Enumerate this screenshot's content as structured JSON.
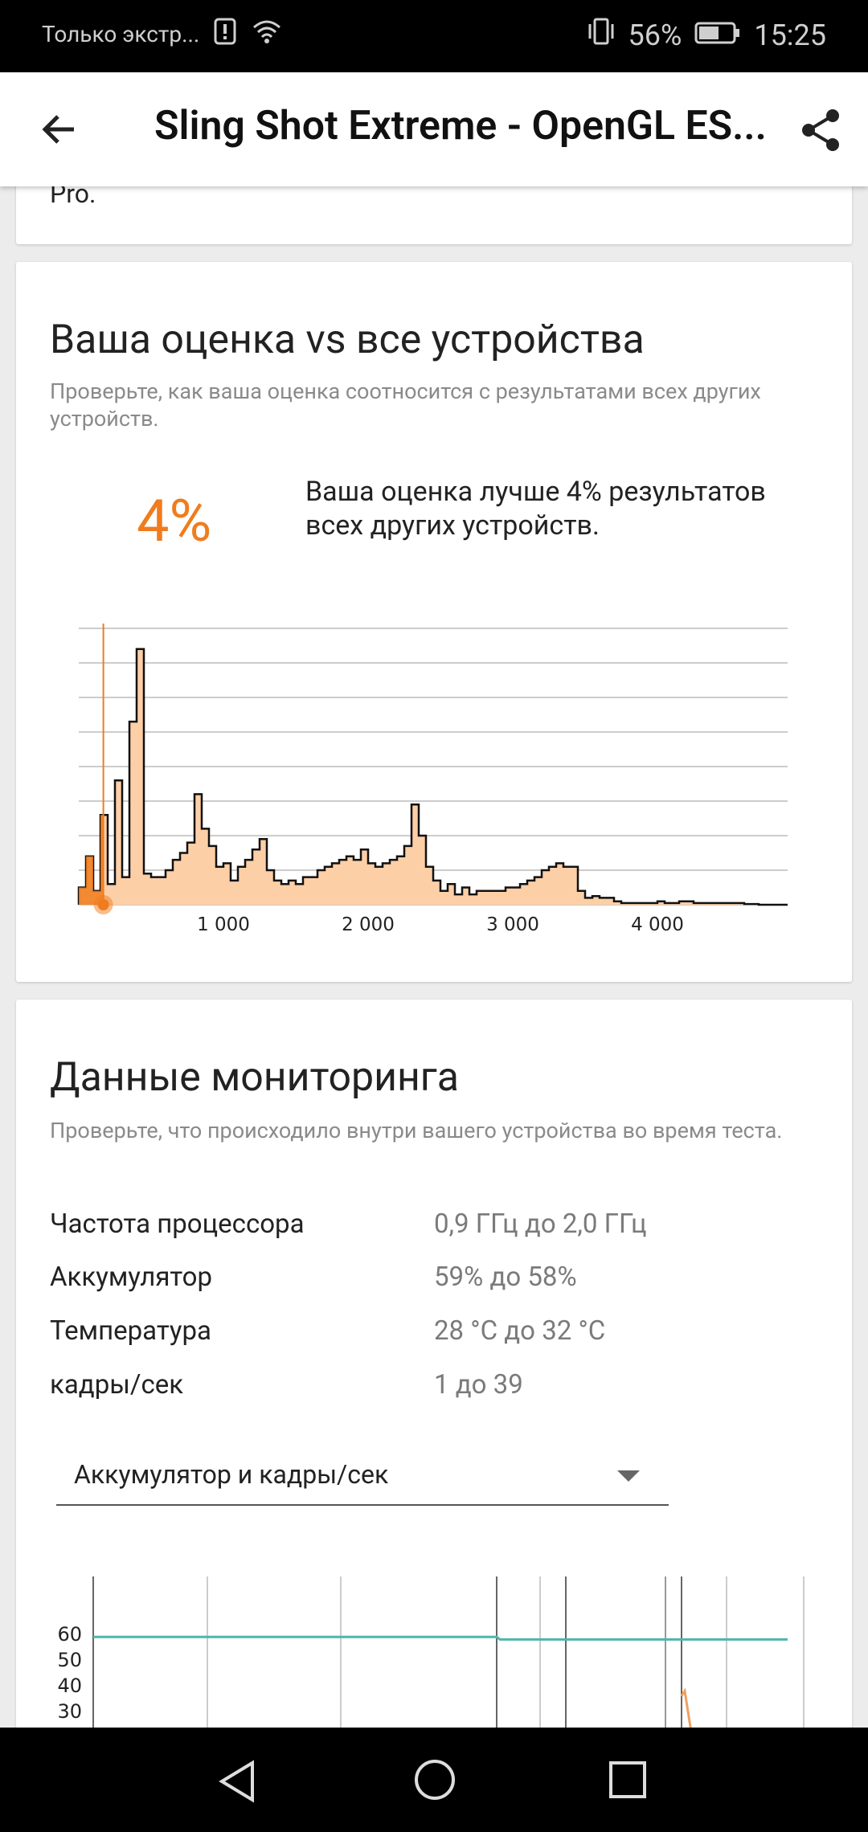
{
  "status_bar": {
    "carrier": "Только экстр...",
    "battery": "56%",
    "time": "15:25"
  },
  "app_bar": {
    "title": "Sling Shot Extreme - OpenGL ES..."
  },
  "previous_card": {
    "text_tail": "Pro."
  },
  "score_card": {
    "title": "Ваша оценка vs все устройства",
    "subtitle": "Проверьте, как ваша оценка соотносится с результатами всех других устройств.",
    "percent": "4%",
    "percent_desc": "Ваша оценка лучше 4% результатов всех других устройств."
  },
  "chart_data": {
    "type": "area",
    "x_ticks": [
      "1 000",
      "2 000",
      "3 000",
      "4 000"
    ],
    "xlim": [
      0,
      4900
    ],
    "ylim": [
      0,
      8
    ],
    "grid": true,
    "user_score": 170,
    "accent_color": "#f07c1e",
    "fill_color": "#fdcfa6",
    "x": [
      0,
      50,
      100,
      150,
      200,
      250,
      300,
      350,
      400,
      450,
      500,
      550,
      600,
      650,
      700,
      750,
      800,
      850,
      900,
      950,
      1000,
      1050,
      1100,
      1150,
      1200,
      1250,
      1300,
      1350,
      1400,
      1450,
      1500,
      1550,
      1600,
      1650,
      1700,
      1750,
      1800,
      1850,
      1900,
      1950,
      2000,
      2050,
      2100,
      2150,
      2200,
      2250,
      2300,
      2350,
      2400,
      2450,
      2500,
      2550,
      2600,
      2650,
      2700,
      2750,
      2800,
      2850,
      2900,
      2950,
      3000,
      3050,
      3100,
      3150,
      3200,
      3250,
      3300,
      3350,
      3400,
      3450,
      3500,
      3550,
      3600,
      3650,
      3700,
      3750,
      3800,
      3850,
      3900,
      3950,
      4000,
      4050,
      4100,
      4150,
      4200,
      4250,
      4300,
      4350,
      4400,
      4450,
      4500,
      4550,
      4600,
      4650,
      4700,
      4750,
      4800,
      4850
    ],
    "values": [
      0.5,
      1.4,
      0.4,
      2.6,
      0.6,
      3.6,
      0.8,
      5.3,
      7.4,
      0.9,
      0.8,
      0.8,
      1.0,
      1.3,
      1.5,
      1.8,
      3.2,
      2.2,
      1.7,
      1.1,
      1.2,
      0.7,
      1.1,
      1.3,
      1.6,
      1.9,
      1.0,
      0.7,
      0.6,
      0.7,
      0.6,
      0.8,
      0.8,
      1.0,
      1.1,
      1.2,
      1.3,
      1.4,
      1.3,
      1.6,
      1.2,
      1.1,
      1.2,
      1.3,
      1.4,
      1.7,
      2.9,
      2.0,
      1.1,
      0.7,
      0.4,
      0.6,
      0.3,
      0.5,
      0.3,
      0.4,
      0.4,
      0.4,
      0.4,
      0.5,
      0.5,
      0.6,
      0.7,
      0.8,
      1.0,
      1.1,
      1.2,
      1.1,
      1.1,
      0.4,
      0.2,
      0.25,
      0.2,
      0.2,
      0.1,
      0.05,
      0.05,
      0.05,
      0.05,
      0.05,
      0.1,
      0.05,
      0.05,
      0.1,
      0.1,
      0.05,
      0.05,
      0.05,
      0.05,
      0.05,
      0.05,
      0.05,
      0.02,
      0.02,
      0.0,
      0.0,
      0.0,
      0.0
    ]
  },
  "monitoring_card": {
    "title": "Данные мониторинга",
    "subtitle": "Проверьте, что происходило внутри вашего устройства во время теста.",
    "rows": [
      {
        "label": "Частота процессора",
        "value": "0,9 ГГц до 2,0 ГГц"
      },
      {
        "label": "Аккумулятор",
        "value": "59% до 58%"
      },
      {
        "label": "Температура",
        "value": "28 °C до 32 °C"
      },
      {
        "label": "кадры/сек",
        "value": "1 до 39"
      }
    ],
    "dropdown_selected": "Аккумулятор и кадры/сек",
    "y_ticks": [
      "60",
      "50",
      "40",
      "30"
    ],
    "line_color": "#4db6ac",
    "fps_color": "#f0a060"
  }
}
